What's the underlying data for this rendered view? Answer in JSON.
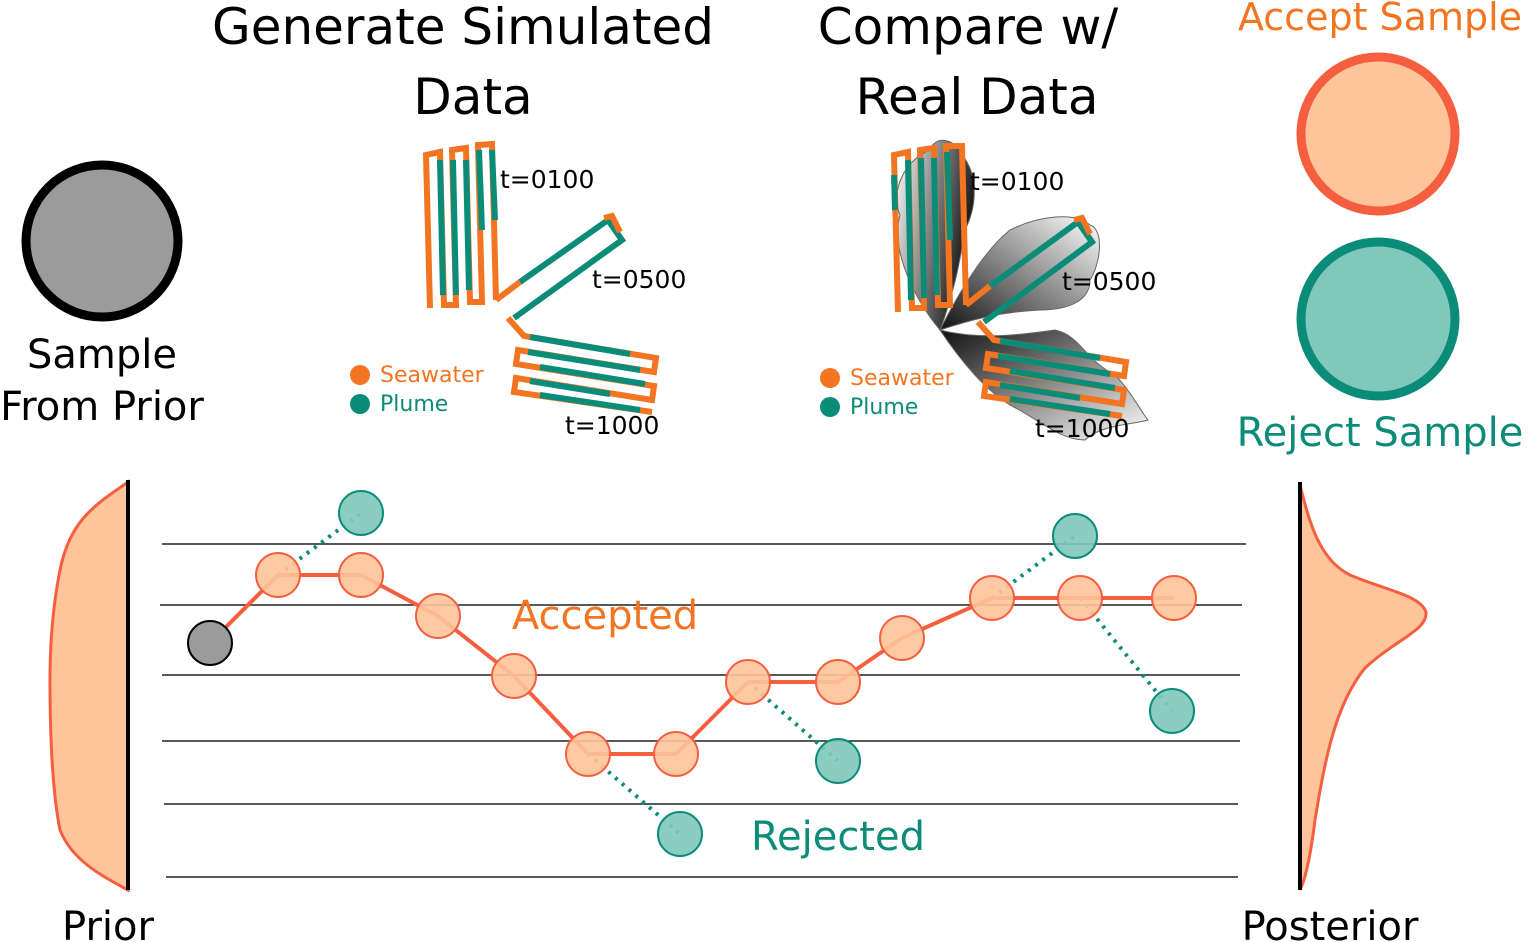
{
  "titles": {
    "sample_prior_line1": "Sample",
    "sample_prior_line2": "From Prior",
    "generate_line1": "Generate Simulated",
    "generate_line2": "Data",
    "compare_line1": "Compare w/",
    "compare_line2": "Real Data",
    "accept_sample": "Accept Sample",
    "reject_sample": "Reject Sample"
  },
  "time_labels": [
    "t=0100",
    "t=0500",
    "t=1000"
  ],
  "legend": {
    "seawater": "Seawater",
    "plume": "Plume"
  },
  "chain": {
    "accepted": "Accepted",
    "rejected": "Rejected"
  },
  "distributions": {
    "prior": "Prior",
    "posterior": "Posterior"
  },
  "colors": {
    "seawater": "#f37421",
    "plume": "#0b8c79",
    "accept_fill": "#fec49a",
    "accept_stroke": "#f55f3f",
    "reject_fill": "#7fc8bb",
    "reject_stroke": "#0b8c79",
    "prior_fill": "#9b9b9b"
  }
}
